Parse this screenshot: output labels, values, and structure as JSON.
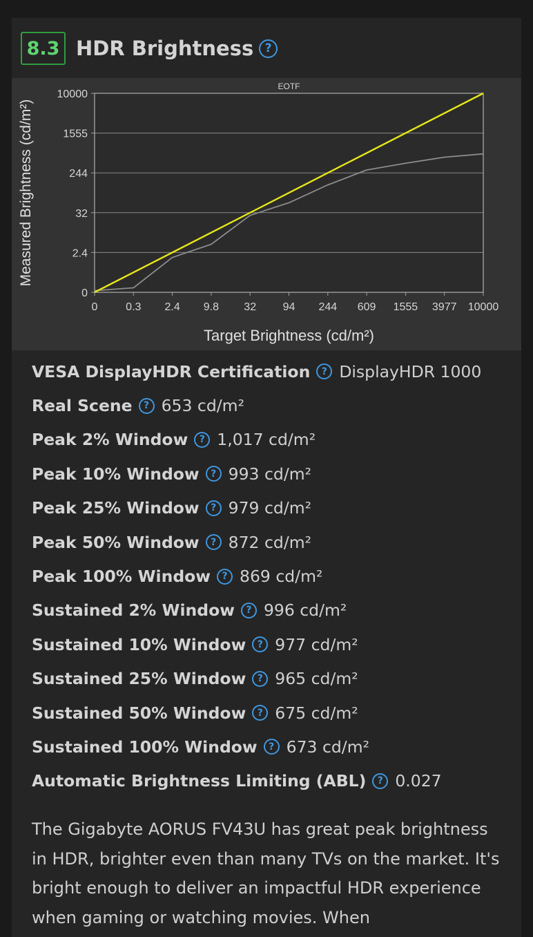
{
  "section": {
    "score": "8.3",
    "title": "HDR Brightness",
    "help_glyph": "?"
  },
  "chart_data": {
    "type": "line",
    "title": "EOTF",
    "xlabel": "Target Brightness (cd/m²)",
    "ylabel": "Measured Brightness (cd/m²)",
    "x_ticks": [
      "0",
      "0.3",
      "2.4",
      "9.8",
      "32",
      "94",
      "244",
      "609",
      "1555",
      "3977",
      "10000"
    ],
    "y_ticks": [
      "0",
      "2.4",
      "32",
      "244",
      "1555",
      "10000"
    ],
    "grid": true,
    "colors": {
      "target": "#e6e619",
      "measured": "#8c8c8c"
    },
    "series": [
      {
        "key": "target",
        "x": [
          0,
          10000
        ],
        "y": [
          0,
          10000
        ]
      },
      {
        "key": "measured",
        "x": [
          0,
          0.3,
          2.4,
          9.8,
          32,
          94,
          244,
          609,
          1555,
          3977,
          10000
        ],
        "y": [
          0.1,
          0.27,
          2.1,
          8.5,
          30,
          85,
          180,
          340,
          560,
          760,
          869
        ]
      }
    ]
  },
  "measurements": [
    {
      "label": "VESA DisplayHDR Certification",
      "value": "DisplayHDR 1000"
    },
    {
      "label": "Real Scene",
      "value": "653 cd/m²"
    },
    {
      "label": "Peak 2% Window",
      "value": "1,017 cd/m²"
    },
    {
      "label": "Peak 10% Window",
      "value": "993 cd/m²"
    },
    {
      "label": "Peak 25% Window",
      "value": "979 cd/m²"
    },
    {
      "label": "Peak 50% Window",
      "value": "872 cd/m²"
    },
    {
      "label": "Peak 100% Window",
      "value": "869 cd/m²"
    },
    {
      "label": "Sustained 2% Window",
      "value": "996 cd/m²"
    },
    {
      "label": "Sustained 10% Window",
      "value": "977 cd/m²"
    },
    {
      "label": "Sustained 25% Window",
      "value": "965 cd/m²"
    },
    {
      "label": "Sustained 50% Window",
      "value": "675 cd/m²"
    },
    {
      "label": "Sustained 100% Window",
      "value": "673 cd/m²"
    },
    {
      "label": "Automatic Brightness Limiting (ABL)",
      "value": "0.027"
    }
  ],
  "description": "The Gigabyte AORUS FV43U has great peak brightness in HDR, brighter even than many TVs on the market. It's bright enough to deliver an impactful HDR experience when gaming or watching movies. When"
}
